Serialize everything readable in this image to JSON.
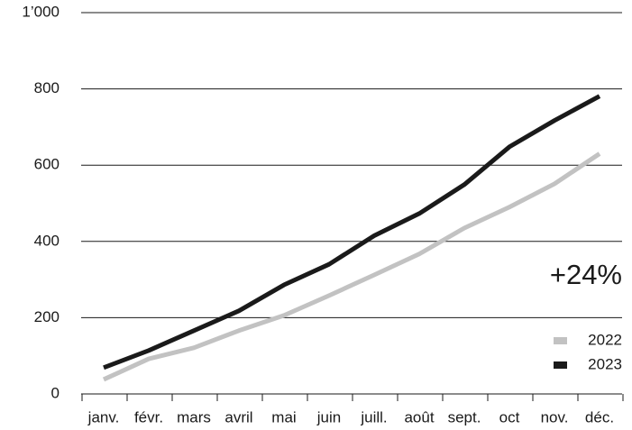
{
  "chart_data": {
    "type": "line",
    "categories": [
      "janv.",
      "févr.",
      "mars",
      "avril",
      "mai",
      "juin",
      "juill.",
      "août",
      "sept.",
      "oct",
      "nov.",
      "déc."
    ],
    "series": [
      {
        "name": "2022",
        "color": "#c2c2c2",
        "values": [
          38,
          92,
          121,
          166,
          206,
          258,
          312,
          367,
          435,
          490,
          551,
          630
        ]
      },
      {
        "name": "2023",
        "color": "#1a1a1a",
        "values": [
          69,
          114,
          166,
          218,
          286,
          340,
          415,
          473,
          549,
          648,
          717,
          781
        ]
      }
    ],
    "ylim": [
      0,
      1000
    ],
    "yticks": [
      0,
      200,
      400,
      600,
      800,
      {
        "value": 1000,
        "label": "1’000"
      }
    ],
    "grid": true,
    "legend": "lower right",
    "annotations": [
      "+24%"
    ]
  }
}
